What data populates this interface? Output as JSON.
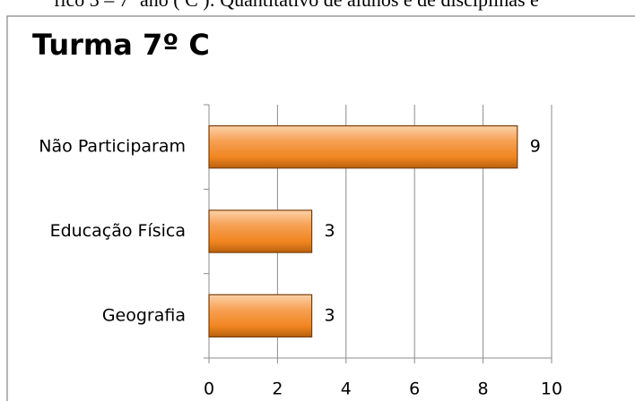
{
  "caption": "fico 3 – 7º ano ( C ): Quantitativo de alunos e de disciplinas e",
  "chart_data": {
    "type": "bar",
    "orientation": "horizontal",
    "title": "Turma 7º C",
    "categories": [
      "Não Participaram",
      "Educação Física",
      "Geografia"
    ],
    "values": [
      9,
      3,
      3
    ],
    "color": "#f79646",
    "xlim": [
      0,
      10
    ],
    "xticks": [
      0,
      2,
      4,
      6,
      8,
      10
    ],
    "grid": true
  }
}
